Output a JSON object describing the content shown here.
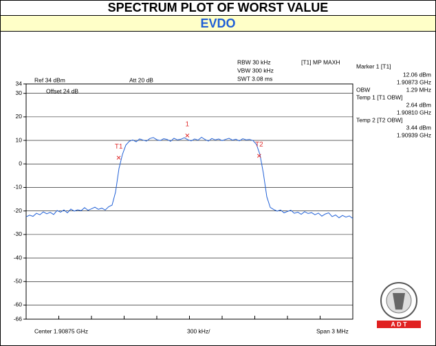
{
  "chart_data": {
    "type": "line",
    "title": "SPECTRUM PLOT OF WORST VALUE",
    "subtitle": "EVDO",
    "info": {
      "ref": "Ref 34 dBm",
      "att": "Att 20 dB",
      "offset": "Offset 24 dB",
      "rbw": "RBW 30 kHz",
      "vbw": "VBW 300 kHz",
      "swt": "SWT 3.08 ms",
      "trace": "[T1] MP MAXH",
      "center": "Center 1.90875 GHz",
      "div": "300 kHz/",
      "span": "Span 3 MHz"
    },
    "panel": {
      "marker_title": "Marker 1 [T1]",
      "obw_label": "OBW",
      "obw_value": "1.29 MHz",
      "temp1_title": "Temp 1 [T1 OBW]",
      "temp2_title": "Temp 2 [T2 OBW]"
    },
    "markers": [
      {
        "label": "1",
        "value": 12.06,
        "value_label": "12.06 dBm",
        "freq": 1.90873,
        "freq_label": "1.90873 GHz"
      },
      {
        "label": "T1",
        "value": 2.64,
        "value_label": "2.64 dBm",
        "freq": 1.9081,
        "freq_label": "1.90810 GHz"
      },
      {
        "label": "T2",
        "value": 3.44,
        "value_label": "3.44 dBm",
        "freq": 1.90939,
        "freq_label": "1.90939 GHz"
      }
    ],
    "logo_text": "A D T",
    "xlim": [
      1.90725,
      1.91025
    ],
    "ylim": [
      -66,
      34
    ],
    "yticks": [
      34,
      30,
      20,
      10,
      0,
      -10,
      -20,
      -30,
      -40,
      -50,
      -60,
      -66
    ],
    "grid": true,
    "color": "#1f5fd6",
    "marker_color": "#e03030",
    "values": [
      -22.5,
      -21.8,
      -22.3,
      -21,
      -21.6,
      -20.4,
      -21.2,
      -20.6,
      -21.5,
      -19.8,
      -20.5,
      -19.6,
      -20.8,
      -19.2,
      -20.1,
      -19.5,
      -19.9,
      -18.6,
      -19.7,
      -19.1,
      -18.4,
      -19.3,
      -18.8,
      -19.6,
      -18.2,
      -17.5,
      -12,
      -2,
      4,
      8,
      9.6,
      10.2,
      9.4,
      10.6,
      10.1,
      9.7,
      10.8,
      11.2,
      10.3,
      9.9,
      10.7,
      10.4,
      9.6,
      10.9,
      10.2,
      10.5,
      11.1,
      10.3,
      9.8,
      10.6,
      10.1,
      11.3,
      10.4,
      9.7,
      10.8,
      10.2,
      10.6,
      9.9,
      10.4,
      10.9,
      10.1,
      10.5,
      9.8,
      10.7,
      10.2,
      10.4,
      9.9,
      8.2,
      4,
      -4,
      -14,
      -18.5,
      -19.4,
      -20.1,
      -19.6,
      -20.8,
      -20.2,
      -19.7,
      -21,
      -20.5,
      -21.4,
      -20.3,
      -21.1,
      -20.7,
      -21.6,
      -20.9,
      -22.2,
      -21.3,
      -20.8,
      -22.4,
      -21.7,
      -22.9,
      -21.9,
      -22.6,
      -22.1,
      -23.2
    ]
  }
}
